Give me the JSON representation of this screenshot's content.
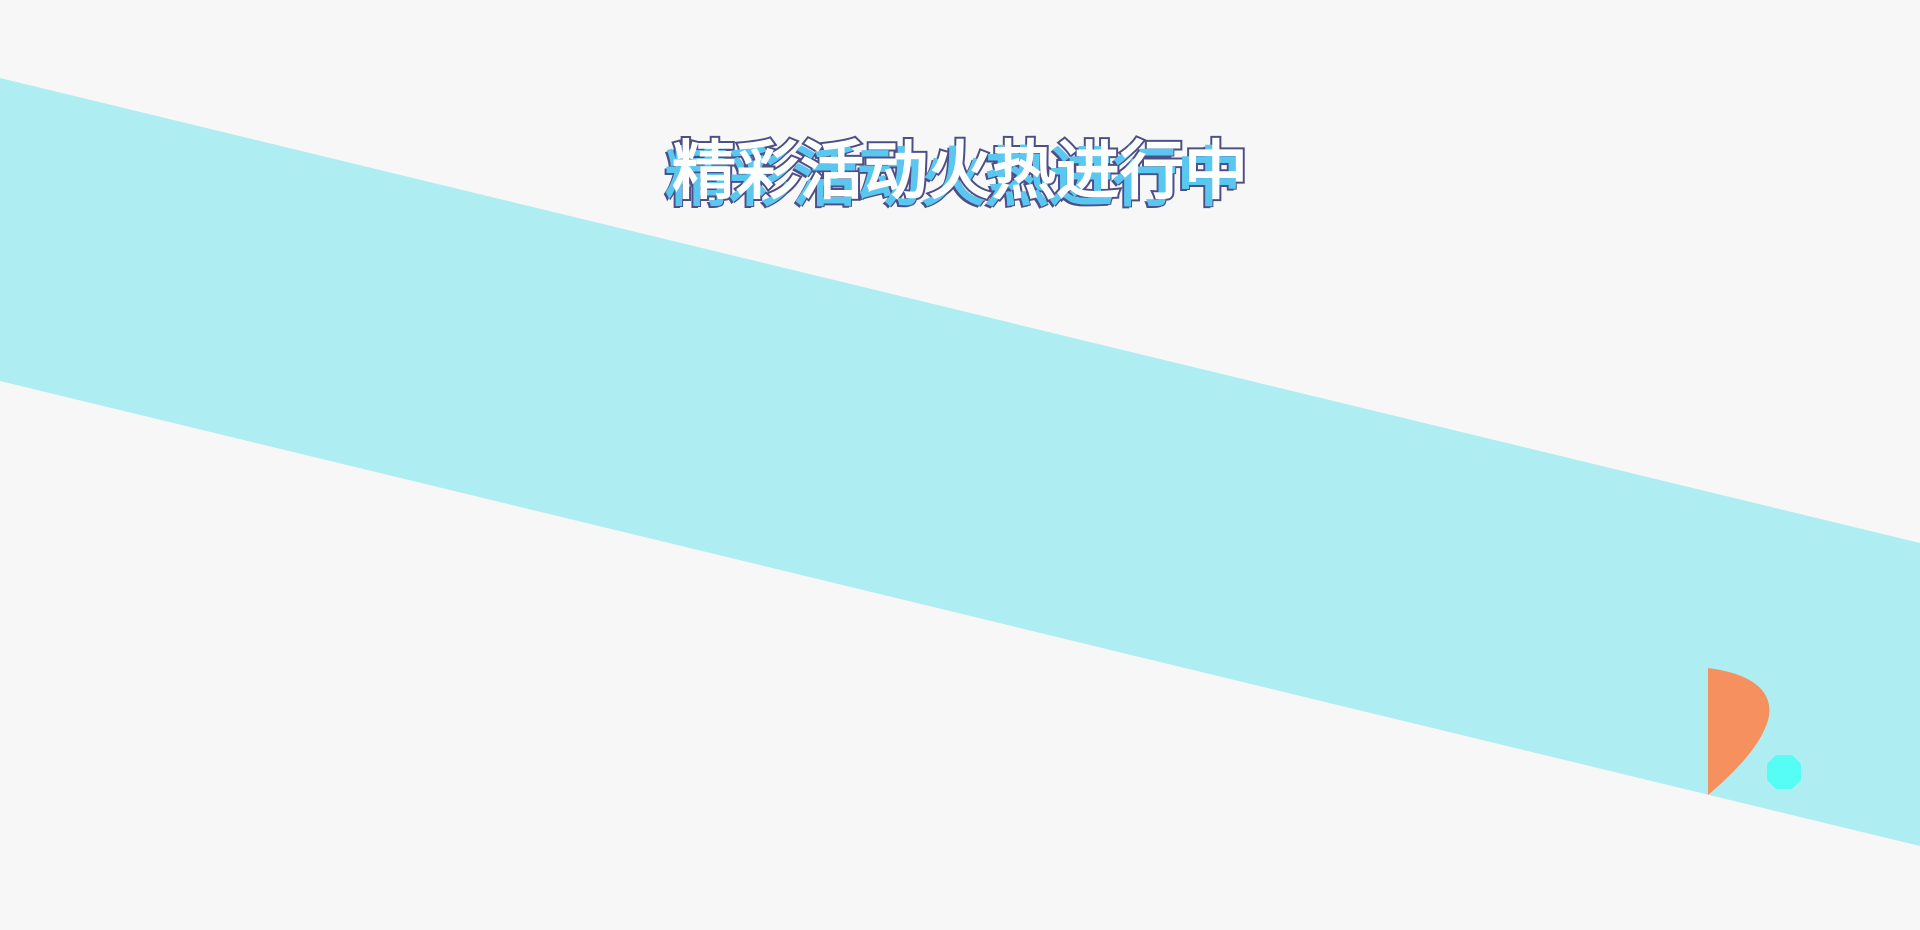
{
  "page": {
    "headline": "精彩活动火热进行中"
  },
  "colors": {
    "background": "#f7f7f7",
    "band": "#aeedf2",
    "headline_fill": "#ffffff",
    "headline_outline": "#4d4f86",
    "headline_shadow": "#59c7f0",
    "accent_orange": "#f7905f",
    "accent_cyan": "#55fdf5"
  },
  "decorations": {
    "orange_shape": "leaf-icon",
    "cyan_shape": "octagon-dot-icon"
  }
}
